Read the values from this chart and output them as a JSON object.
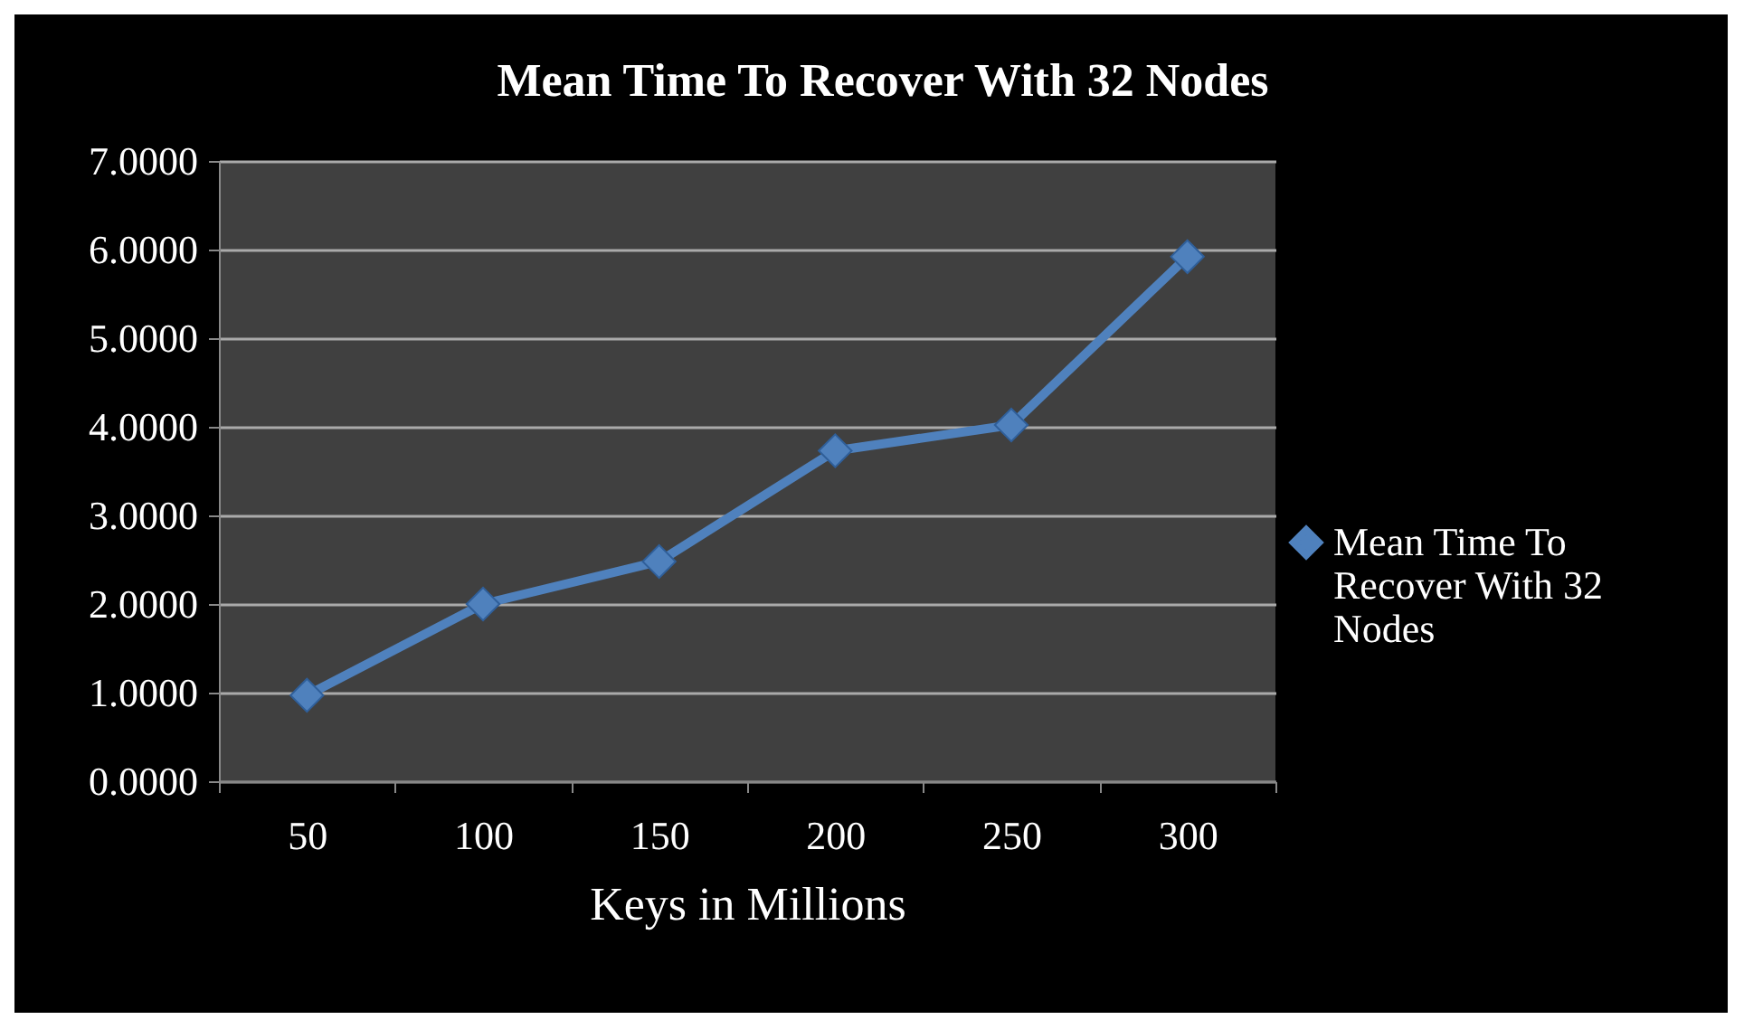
{
  "chart_data": {
    "type": "line",
    "title": "Mean Time To Recover With 32 Nodes",
    "xlabel": "Keys in Millions",
    "categories": [
      "50",
      "100",
      "150",
      "200",
      "250",
      "300"
    ],
    "series": [
      {
        "name": "Mean Time To Recover With 32 Nodes",
        "color": "#4f81bd",
        "values": [
          0.97,
          2.0,
          2.48,
          3.73,
          4.02,
          5.92
        ]
      }
    ],
    "ylim": [
      0,
      7
    ],
    "yticks": [
      {
        "value": 0,
        "label": "0.0000"
      },
      {
        "value": 1,
        "label": "1.0000"
      },
      {
        "value": 2,
        "label": "2.0000"
      },
      {
        "value": 3,
        "label": "3.0000"
      },
      {
        "value": 4,
        "label": "4.0000"
      },
      {
        "value": 5,
        "label": "5.0000"
      },
      {
        "value": 6,
        "label": "6.0000"
      },
      {
        "value": 7,
        "label": "7.0000"
      }
    ],
    "grid": "y",
    "legend": "right",
    "marker": "diamond",
    "line_style": "solid"
  }
}
